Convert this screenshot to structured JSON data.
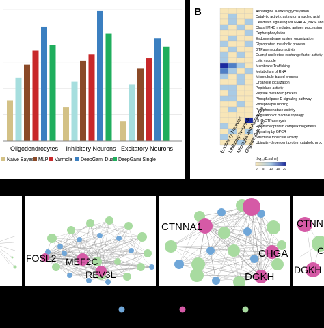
{
  "panel_a": {
    "groups": [
      "Oligodendrocytes",
      "Inhibitory Neurons",
      "Excitatory Neurons"
    ],
    "legend": [
      "Naive Bayes",
      "MLP",
      "Varmole",
      "DeepGami Dual",
      "DeepGami Single"
    ]
  },
  "panel_b": {
    "label": "B",
    "terms": [
      "Asparagine N-linked glycosylation",
      "Catalytic activity, acting on a nucleic acid",
      "Cell death signalling via NRAGE, NRIF and",
      "Class I MHC mediated antigen processing",
      "Dephosphorylation",
      "Endomembrane system organization",
      "Glycoprotein metabolic process",
      "GTPase regulator activity",
      "Guanyl-nucleotide exchange factor activity",
      "Lytic vacuole",
      "Membrane Trafficking",
      "Metabolism of RNA",
      "Microtubule-based process",
      "Organelle localization",
      "Peptidase activity",
      "Peptide metabolic process",
      "Phospholipase D signaling pathway",
      "Phospholipid binding",
      "Pyrophosphatase activity",
      "Regulation of macroautophagy",
      "RHO GTPase cycle",
      "Ribonucleoprotein complex biogenesis",
      "Signaling by GPCR",
      "Structural molecule activity",
      "Ubiquitin-dependent protein catabolic proc"
    ],
    "columns": [
      "Excitatory Neurons",
      "Inhibitory Neurons",
      "Microglia and Astrocytes",
      "Oligodendrocytes"
    ],
    "scale_label": "-log₁₀(P-value)",
    "scale_ticks": [
      "0",
      "5",
      "10",
      "15",
      "20"
    ]
  },
  "networks": {
    "net2": [
      "FOSL2",
      "MEF2C",
      "REV3L"
    ],
    "net3": [
      "CTNNA1",
      "CHGA",
      "DGKH"
    ],
    "net4": [
      "CTNN",
      "C",
      "DGKH"
    ]
  },
  "colors": {
    "naive_bayes": "#d3c186",
    "mlp": "#8b4a28",
    "varmole": "#c8282a",
    "deepgami_dual": "#3b7fc0",
    "deepgami_single": "#1fae5d",
    "bar_light": "#a6dede",
    "heat_low": "#f8e6b8",
    "heat_mid": "#a9cbe5",
    "heat_high": "#1a2aa0",
    "node_pink": "#d55aa6",
    "node_green": "#a8dba0",
    "node_blue": "#6fa6d8",
    "edge": "#999999"
  },
  "chart_data": {
    "type": "bar",
    "categories": [
      "Oligodendrocytes",
      "Inhibitory Neurons",
      "Excitatory Neurons"
    ],
    "series": [
      {
        "name": "Naive Bayes",
        "values": [
          0.31,
          0.26,
          0.15
        ]
      },
      {
        "name": "",
        "values": [
          0.48,
          0.45,
          0.43
        ]
      },
      {
        "name": "MLP",
        "values": [
          0.58,
          0.61,
          0.55
        ]
      },
      {
        "name": "Varmole",
        "values": [
          0.69,
          0.66,
          0.63
        ]
      },
      {
        "name": "DeepGami Dual",
        "values": [
          0.87,
          0.99,
          0.78
        ]
      },
      {
        "name": "DeepGami Single",
        "values": [
          0.73,
          0.82,
          0.72
        ]
      }
    ],
    "ylim": [
      0,
      1
    ]
  },
  "heatmap_values": [
    [
      0,
      0,
      0,
      0
    ],
    [
      0,
      1,
      0,
      0
    ],
    [
      0,
      1,
      0,
      1
    ],
    [
      1,
      0,
      1,
      0
    ],
    [
      0,
      0,
      0,
      1
    ],
    [
      0,
      1,
      0,
      0
    ],
    [
      1,
      0,
      0,
      1
    ],
    [
      0,
      1,
      0,
      0
    ],
    [
      1,
      0,
      1,
      0
    ],
    [
      1,
      0,
      0,
      0
    ],
    [
      3,
      2,
      1,
      0
    ],
    [
      2,
      1,
      0,
      1
    ],
    [
      1,
      0,
      1,
      0
    ],
    [
      0,
      0,
      1,
      0
    ],
    [
      1,
      1,
      0,
      0
    ],
    [
      0,
      1,
      0,
      0
    ],
    [
      1,
      1,
      0,
      0
    ],
    [
      0,
      0,
      1,
      0
    ],
    [
      0,
      1,
      0,
      0
    ],
    [
      0,
      0,
      0,
      0
    ],
    [
      0,
      0,
      0,
      3
    ],
    [
      1,
      0,
      0,
      0
    ],
    [
      0,
      1,
      0,
      1
    ],
    [
      1,
      0,
      0,
      0
    ],
    [
      0,
      0,
      1,
      0
    ]
  ]
}
